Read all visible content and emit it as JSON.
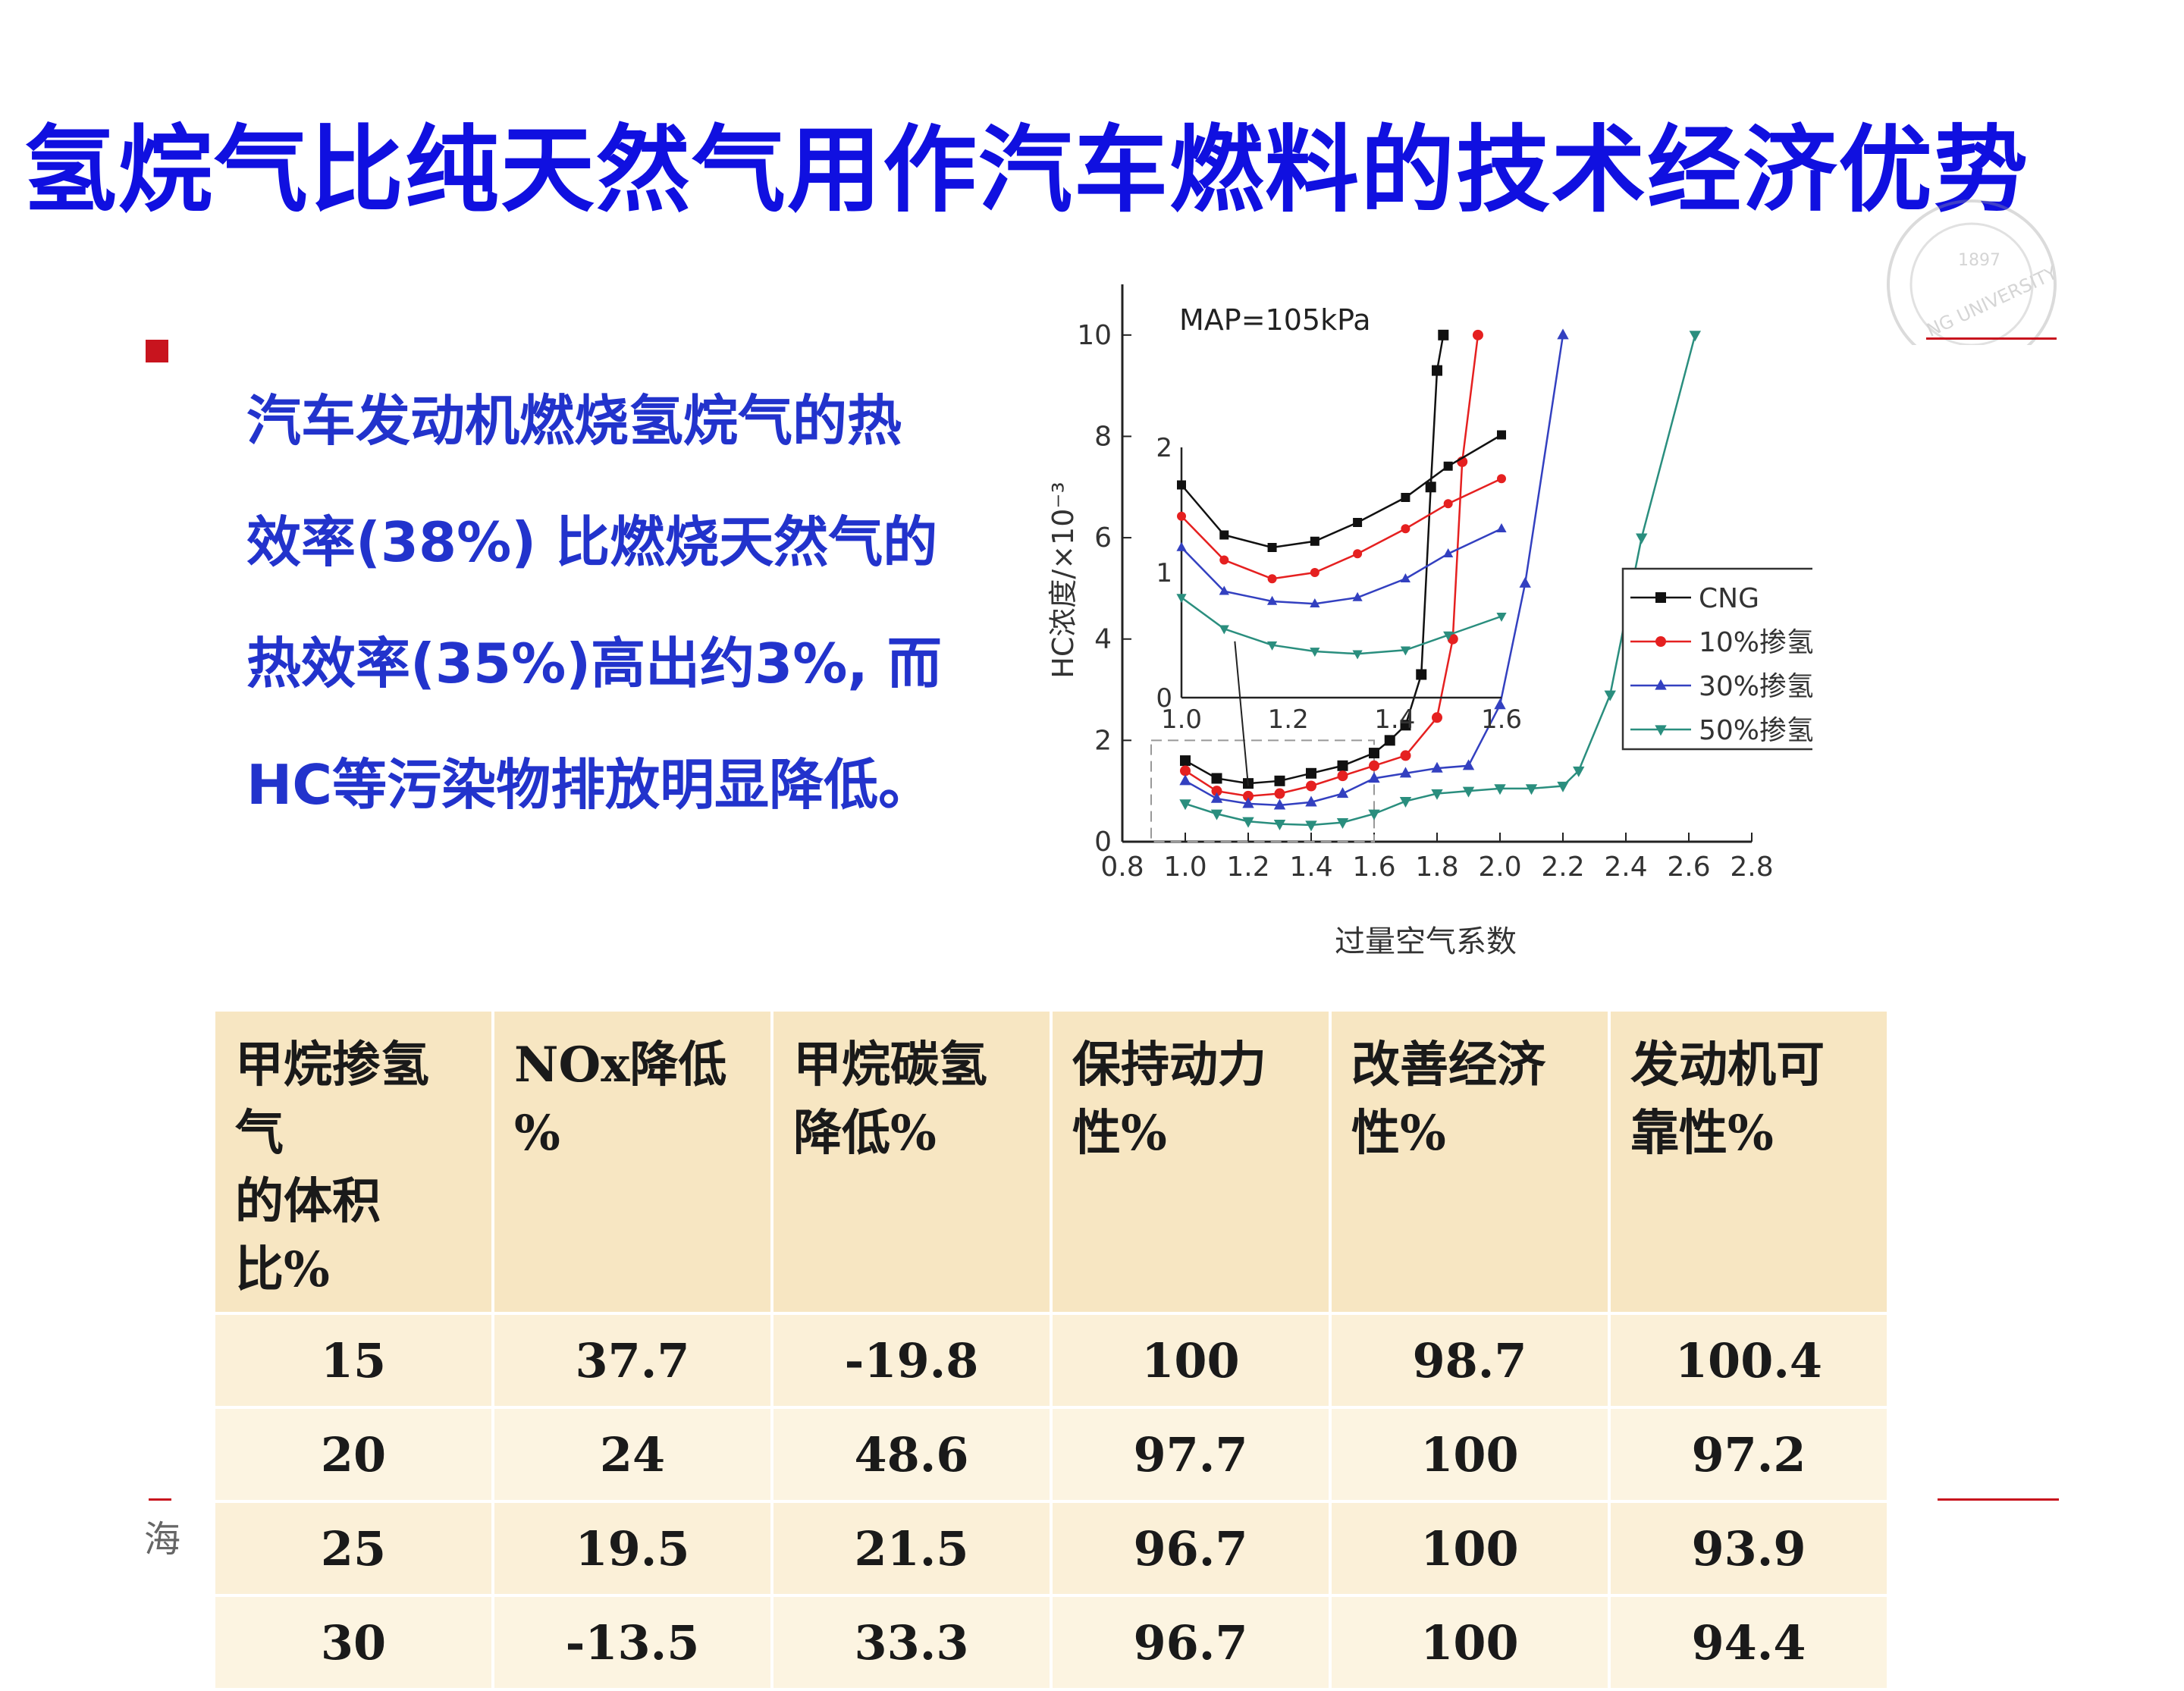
{
  "title": "氢烷气比纯天然气用作汽车燃料的技术经济优势",
  "body_lines": [
    "汽车发动机燃烧氢烷气的热",
    "效率(38%) 比燃烧天然气的",
    "热效率(35%)高出约3%, 而",
    "HC等污染物排放明显降低。"
  ],
  "seal_text": "NG UNIVERSITY",
  "seal_year": "1897",
  "chart_data": {
    "type": "line",
    "annotation": "MAP=105kPa",
    "xlabel": "过量空气系数",
    "ylabel": "HC浓度/×10⁻³",
    "xlim": [
      0.8,
      2.8
    ],
    "ylim": [
      0,
      11
    ],
    "x_ticks": [
      "0.8",
      "1.0",
      "1.2",
      "1.4",
      "1.6",
      "1.8",
      "2.0",
      "2.2",
      "2.4",
      "2.6",
      "2.8"
    ],
    "y_ticks": [
      "0",
      "2",
      "4",
      "6",
      "8",
      "10"
    ],
    "legend_position": "right",
    "series": [
      {
        "name": "CNG",
        "color": "#111111",
        "marker": "square",
        "x": [
          1.0,
          1.1,
          1.2,
          1.3,
          1.4,
          1.5,
          1.6,
          1.65,
          1.7,
          1.75,
          1.78,
          1.8,
          1.82
        ],
        "y": [
          1.6,
          1.25,
          1.15,
          1.2,
          1.35,
          1.5,
          1.75,
          2.0,
          2.3,
          3.3,
          7.0,
          9.3,
          10.0
        ]
      },
      {
        "name": "10%掺氢",
        "color": "#e52020",
        "marker": "circle",
        "x": [
          1.0,
          1.1,
          1.2,
          1.3,
          1.4,
          1.5,
          1.6,
          1.7,
          1.8,
          1.85,
          1.88,
          1.93
        ],
        "y": [
          1.4,
          1.0,
          0.9,
          0.95,
          1.1,
          1.3,
          1.5,
          1.7,
          2.45,
          4.0,
          7.5,
          10.0
        ]
      },
      {
        "name": "30%掺氢",
        "color": "#3340c0",
        "marker": "triangle-up",
        "x": [
          1.0,
          1.1,
          1.2,
          1.3,
          1.4,
          1.5,
          1.6,
          1.7,
          1.8,
          1.9,
          2.0,
          2.08,
          2.2
        ],
        "y": [
          1.2,
          0.85,
          0.75,
          0.72,
          0.78,
          0.95,
          1.25,
          1.35,
          1.45,
          1.5,
          2.7,
          5.1,
          10.0
        ]
      },
      {
        "name": "50%掺氢",
        "color": "#2a8e7e",
        "marker": "triangle-down",
        "x": [
          1.0,
          1.1,
          1.2,
          1.3,
          1.4,
          1.5,
          1.6,
          1.7,
          1.8,
          1.9,
          2.0,
          2.1,
          2.2,
          2.25,
          2.35,
          2.45,
          2.62
        ],
        "y": [
          0.75,
          0.55,
          0.4,
          0.35,
          0.33,
          0.38,
          0.55,
          0.8,
          0.95,
          1.0,
          1.05,
          1.05,
          1.1,
          1.4,
          2.9,
          6.0,
          10.0
        ]
      }
    ],
    "inset": {
      "xlim": [
        1.0,
        1.6
      ],
      "ylim": [
        0,
        2
      ],
      "x_ticks": [
        "1.0",
        "1.2",
        "1.4",
        "1.6"
      ],
      "y_ticks": [
        "0",
        "1",
        "2"
      ],
      "series_y": [
        [
          1.7,
          1.3,
          1.2,
          1.25,
          1.4,
          1.6,
          1.85,
          2.1
        ],
        [
          1.45,
          1.1,
          0.95,
          1.0,
          1.15,
          1.35,
          1.55,
          1.75
        ],
        [
          1.2,
          0.85,
          0.77,
          0.75,
          0.8,
          0.95,
          1.15,
          1.35
        ],
        [
          0.8,
          0.55,
          0.42,
          0.37,
          0.35,
          0.38,
          0.5,
          0.65
        ]
      ],
      "x": [
        1.0,
        1.08,
        1.17,
        1.25,
        1.33,
        1.42,
        1.5,
        1.6
      ]
    }
  },
  "table": {
    "headers": [
      [
        "甲烷掺氢气",
        "的体积比%"
      ],
      [
        "NOx降低",
        "%"
      ],
      [
        "甲烷碳氢",
        "降低%"
      ],
      [
        "保持动力",
        "性%"
      ],
      [
        "改善经济",
        "性%"
      ],
      [
        "发动机可",
        "靠性%"
      ]
    ],
    "rows": [
      [
        "15",
        "37.7",
        "-19.8",
        "100",
        "98.7",
        "100.4"
      ],
      [
        "20",
        "24",
        "48.6",
        "97.7",
        "100",
        "97.2"
      ],
      [
        "25",
        "19.5",
        "21.5",
        "96.7",
        "100",
        "93.9"
      ],
      [
        "30",
        "-13.5",
        "33.3",
        "96.7",
        "100",
        "94.4"
      ]
    ]
  },
  "colors": {
    "title": "#1010e0",
    "body": "#2233cc",
    "accent": "#c8141e",
    "table_bg": "#faf1dc"
  },
  "footer_mark": "海"
}
